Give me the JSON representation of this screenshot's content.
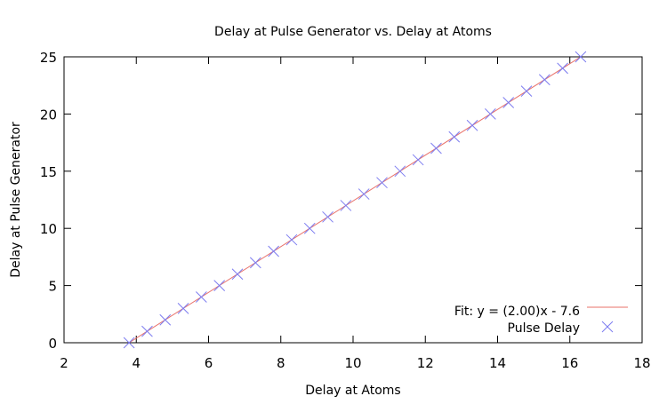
{
  "chart_data": {
    "type": "scatter",
    "title": "Delay at Pulse Generator vs. Delay at Atoms",
    "xlabel": "Delay at Atoms",
    "ylabel": "Delay at Pulse Generator",
    "xlim": [
      2,
      18
    ],
    "ylim": [
      0,
      25
    ],
    "xticks": [
      2,
      4,
      6,
      8,
      10,
      12,
      14,
      16,
      18
    ],
    "yticks": [
      0,
      5,
      10,
      15,
      20,
      25
    ],
    "grid": false,
    "legend_position": "bottom-right",
    "series": [
      {
        "name": "Fit: y = (2.00)x - 7.6",
        "kind": "line",
        "color": "#e8716a",
        "slope": 2.0,
        "intercept": -7.6,
        "x_range": [
          3.8,
          16.3
        ]
      },
      {
        "name": "Pulse Delay",
        "kind": "points",
        "marker": "x",
        "color": "#7b7bf0",
        "x": [
          3.8,
          4.3,
          4.8,
          5.3,
          5.8,
          6.3,
          6.8,
          7.3,
          7.8,
          8.3,
          8.8,
          9.3,
          9.8,
          10.3,
          10.8,
          11.3,
          11.8,
          12.3,
          12.8,
          13.3,
          13.8,
          14.3,
          14.8,
          15.3,
          15.8,
          16.3
        ],
        "y": [
          0,
          1,
          2,
          3,
          4,
          5,
          6,
          7,
          8,
          9,
          10,
          11,
          12,
          13,
          14,
          15,
          16,
          17,
          18,
          19,
          20,
          21,
          22,
          23,
          24,
          25
        ]
      }
    ]
  },
  "legend": {
    "fit_label": "Fit: y = (2.00)x - 7.6",
    "points_label": "Pulse Delay"
  }
}
